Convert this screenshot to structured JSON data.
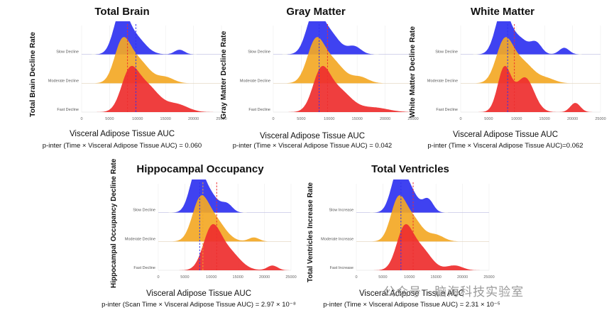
{
  "chart_data": [
    {
      "type": "ridgeline",
      "title": "Total Brain",
      "ylabel": "Total Brain Decline Rate",
      "xlabel": "Visceral Adipose Tissue AUC",
      "pinter": "p-inter (Time × Visceral Adipose Tissue AUC) = 0.060",
      "xlim": [
        0,
        25000
      ],
      "xticks": [
        0,
        5000,
        10000,
        15000,
        20000,
        25000
      ],
      "categories": [
        "Slow Decline",
        "Moderate Decline",
        "Fast Decline"
      ],
      "series_colors": [
        "#2f32f0",
        "#f3a825",
        "#ee2e2e"
      ],
      "vlines": [
        {
          "x": 8200,
          "color": "#ee2e2e",
          "style": "dashed"
        },
        {
          "x": 9700,
          "color": "#2f32f0",
          "style": "dashed"
        }
      ],
      "series": [
        {
          "peaks": [
            [
              7000,
              1300,
              1.0
            ],
            [
              9500,
              1800,
              0.45
            ],
            [
              17500,
              900,
              0.12
            ]
          ]
        },
        {
          "peaks": [
            [
              7200,
              1400,
              0.95
            ],
            [
              10000,
              2000,
              0.6
            ],
            [
              15000,
              1500,
              0.15
            ]
          ]
        },
        {
          "peaks": [
            [
              8500,
              1500,
              0.9
            ],
            [
              11500,
              2200,
              0.7
            ],
            [
              17000,
              2000,
              0.2
            ]
          ]
        }
      ]
    },
    {
      "type": "ridgeline",
      "title": "Gray Matter",
      "ylabel": "Gray Matter Decline Rate",
      "xlabel": "Visceral Adipose Tissue AUC",
      "pinter": "p-inter (Time × Visceral Adipose Tissue AUC) = 0.042",
      "xlim": [
        0,
        25000
      ],
      "xticks": [
        0,
        5000,
        10000,
        15000,
        20000,
        25000
      ],
      "categories": [
        "Slow Decline",
        "Moderate Decline",
        "Fast Decline"
      ],
      "series_colors": [
        "#2f32f0",
        "#f3a825",
        "#ee2e2e"
      ],
      "vlines": [
        {
          "x": 8200,
          "color": "#2f32f0",
          "style": "dashed"
        },
        {
          "x": 9700,
          "color": "#ee2e2e",
          "style": "dashed"
        }
      ],
      "series": [
        {
          "peaks": [
            [
              7300,
              1400,
              1.0
            ],
            [
              10000,
              1800,
              0.55
            ],
            [
              14500,
              1200,
              0.2
            ]
          ]
        },
        {
          "peaks": [
            [
              7500,
              1500,
              0.95
            ],
            [
              10500,
              2000,
              0.55
            ],
            [
              15500,
              1500,
              0.15
            ]
          ]
        },
        {
          "peaks": [
            [
              8500,
              1500,
              0.95
            ],
            [
              11500,
              2300,
              0.6
            ],
            [
              18000,
              2500,
              0.12
            ]
          ]
        }
      ]
    },
    {
      "type": "ridgeline",
      "title": "White Matter",
      "ylabel": "White Matter Decline Rate",
      "xlabel": "Visceral Adipose Tissue AUC",
      "pinter": "p-inter (Time × Visceral Adipose Tissue AUC)=0.062",
      "xlim": [
        0,
        25000
      ],
      "xticks": [
        0,
        5000,
        10000,
        15000,
        20000,
        25000
      ],
      "categories": [
        "Slow Decline",
        "Moderate Decline",
        "Fast Decline"
      ],
      "series_colors": [
        "#2f32f0",
        "#f3a825",
        "#ee2e2e"
      ],
      "vlines": [
        {
          "x": 8400,
          "color": "#2f32f0",
          "style": "dashed"
        },
        {
          "x": 9600,
          "color": "#ee2e2e",
          "style": "dashed"
        }
      ],
      "series": [
        {
          "peaks": [
            [
              7500,
              1300,
              1.0
            ],
            [
              10500,
              1500,
              0.35
            ],
            [
              13500,
              1000,
              0.25
            ],
            [
              18500,
              900,
              0.15
            ]
          ]
        },
        {
          "peaks": [
            [
              7800,
              1500,
              0.95
            ],
            [
              11000,
              2000,
              0.5
            ],
            [
              15500,
              1500,
              0.1
            ]
          ]
        },
        {
          "peaks": [
            [
              7800,
              1200,
              0.95
            ],
            [
              11500,
              1600,
              0.75
            ],
            [
              20500,
              900,
              0.2
            ]
          ]
        }
      ]
    },
    {
      "type": "ridgeline",
      "title": "Hippocampal Occupancy",
      "ylabel": "Hippocampal Occupancy Decline Rate",
      "xlabel": "Visceral Adipose Tissue AUC",
      "pinter": "p-inter (Scan Time × Visceral Adipose Tissue AUC) = 2.97 × 10⁻⁸",
      "xlim": [
        0,
        25000
      ],
      "xticks": [
        0,
        5000,
        10000,
        15000,
        20000,
        25000
      ],
      "categories": [
        "Slow Decline",
        "Moderate Decline",
        "Fast Decline"
      ],
      "series_colors": [
        "#2f32f0",
        "#f3a825",
        "#ee2e2e"
      ],
      "vlines": [
        {
          "x": 7800,
          "color": "#2f32f0",
          "style": "dashed"
        },
        {
          "x": 8400,
          "color": "#f3a825",
          "style": "dashed"
        },
        {
          "x": 11000,
          "color": "#ee2e2e",
          "style": "dashed"
        }
      ],
      "series": [
        {
          "peaks": [
            [
              7200,
              1300,
              1.0
            ],
            [
              9500,
              1700,
              0.5
            ],
            [
              13000,
              1000,
              0.2
            ]
          ]
        },
        {
          "peaks": [
            [
              7800,
              1500,
              0.9
            ],
            [
              10500,
              2000,
              0.55
            ],
            [
              18000,
              1000,
              0.1
            ]
          ]
        },
        {
          "peaks": [
            [
              10000,
              1600,
              0.95
            ],
            [
              13000,
              2200,
              0.5
            ],
            [
              21500,
              1000,
              0.12
            ]
          ]
        }
      ]
    },
    {
      "type": "ridgeline",
      "title": "Total Ventricles",
      "ylabel": "Total Ventricles Increase Rate",
      "xlabel": "Visceral Adipose Tissue AUC",
      "pinter": "p-inter (Time × Visceral Adipose Tissue AUC) = 2.31 × 10⁻⁵",
      "xlim": [
        0,
        25000
      ],
      "xticks": [
        0,
        5000,
        10000,
        15000,
        20000,
        25000
      ],
      "categories": [
        "Slow Increase",
        "Moderate Increase",
        "Fast Increase"
      ],
      "series_colors": [
        "#2f32f0",
        "#f3a825",
        "#ee2e2e"
      ],
      "vlines": [
        {
          "x": 8400,
          "color": "#2f32f0",
          "style": "dashed"
        },
        {
          "x": 10700,
          "color": "#ee2e2e",
          "style": "dashed"
        }
      ],
      "series": [
        {
          "peaks": [
            [
              7800,
              1300,
              1.0
            ],
            [
              10000,
              1500,
              0.6
            ],
            [
              13500,
              1000,
              0.35
            ]
          ]
        },
        {
          "peaks": [
            [
              7800,
              1400,
              0.9
            ],
            [
              10500,
              1800,
              0.55
            ],
            [
              15000,
              1500,
              0.15
            ]
          ]
        },
        {
          "peaks": [
            [
              9000,
              1500,
              0.95
            ],
            [
              12000,
              2000,
              0.55
            ],
            [
              18500,
              1500,
              0.12
            ]
          ]
        }
      ]
    }
  ],
  "watermark": "公众号 · 脑海科技实验室"
}
